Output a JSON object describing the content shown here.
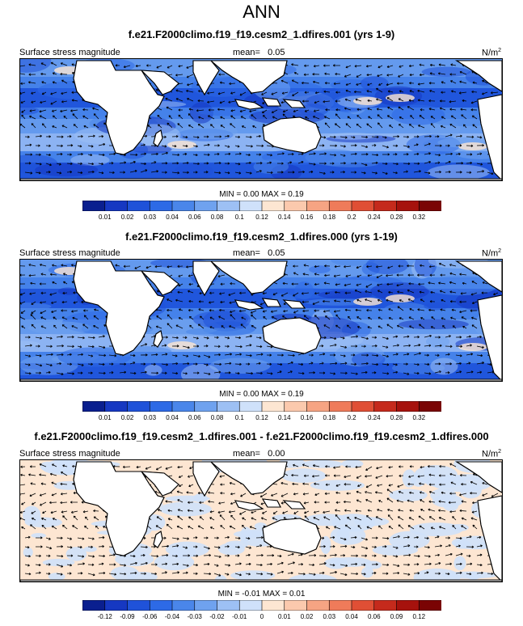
{
  "figure": {
    "title": "ANN"
  },
  "panels": [
    {
      "title": "f.e21.F2000climo.f19_f19.cesm2_1.dfires.001 (yrs 1-9)",
      "left_label": "Surface stress magnitude",
      "mean_label": "mean=",
      "mean_value": "0.05",
      "units": "N/m",
      "units_sup": "2",
      "minmax": "MIN =   0.00 MAX =   0.19",
      "palette": "abs",
      "colorbar_ticks": [
        "0.01",
        "0.02",
        "0.03",
        "0.04",
        "0.06",
        "0.08",
        "0.1",
        "0.12",
        "0.14",
        "0.16",
        "0.18",
        "0.2",
        "0.24",
        "0.28",
        "0.32"
      ]
    },
    {
      "title": "f.e21.F2000climo.f19_f19.cesm2_1.dfires.000 (yrs 1-19)",
      "left_label": "Surface stress magnitude",
      "mean_label": "mean=",
      "mean_value": "0.05",
      "units": "N/m",
      "units_sup": "2",
      "minmax": "MIN =   0.00 MAX =   0.19",
      "palette": "abs",
      "colorbar_ticks": [
        "0.01",
        "0.02",
        "0.03",
        "0.04",
        "0.06",
        "0.08",
        "0.1",
        "0.12",
        "0.14",
        "0.16",
        "0.18",
        "0.2",
        "0.24",
        "0.28",
        "0.32"
      ]
    },
    {
      "title": "f.e21.F2000climo.f19_f19.cesm2_1.dfires.001 - f.e21.F2000climo.f19_f19.cesm2_1.dfires.000",
      "left_label": "Surface stress magnitude",
      "mean_label": "mean=",
      "mean_value": "0.00",
      "units": "N/m",
      "units_sup": "2",
      "minmax": "MIN =  -0.01 MAX =   0.01",
      "palette": "diff",
      "colorbar_ticks": [
        "-0.12",
        "-0.09",
        "-0.06",
        "-0.04",
        "-0.03",
        "-0.02",
        "-0.01",
        "0",
        "0.01",
        "0.02",
        "0.03",
        "0.04",
        "0.06",
        "0.09",
        "0.12"
      ]
    }
  ],
  "colors": {
    "abs_palette": [
      "#0a1f8f",
      "#1638c2",
      "#1f52d9",
      "#2d6ae6",
      "#4a86ea",
      "#6fa2ef",
      "#9dc0f4",
      "#cfe1fa",
      "#fde6d2",
      "#fbc9ad",
      "#f6a483",
      "#ef7b5a",
      "#e04f35",
      "#c52a1c",
      "#a6120d",
      "#7a0404"
    ],
    "diff_palette": [
      "#0a1f8f",
      "#1638c2",
      "#1f52d9",
      "#2d6ae6",
      "#4a86ea",
      "#6fa2ef",
      "#9dc0f4",
      "#cfe1fa",
      "#fde6d2",
      "#fbc9ad",
      "#f6a483",
      "#ef7b5a",
      "#e04f35",
      "#c52a1c",
      "#a6120d",
      "#7a0404"
    ],
    "land": "#ffffff",
    "coast": "#000000",
    "arrow": "#000000"
  }
}
